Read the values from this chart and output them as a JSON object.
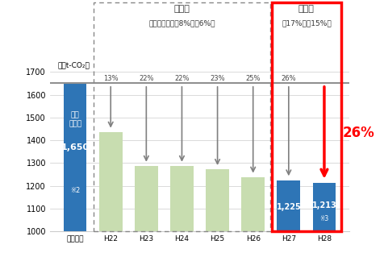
{
  "title_period1": "第一期",
  "subtitle_period1": "（削減義務率：8%又は6%）",
  "title_period2": "第二期",
  "subtitle_period2": "（17%又は15%）",
  "ylabel": "万t-CO₂)",
  "ylim": [
    1000,
    1700
  ],
  "yticks": [
    1000,
    1100,
    1200,
    1300,
    1400,
    1500,
    1600,
    1700
  ],
  "categories": [
    "基準年度",
    "H22",
    "H23",
    "H24",
    "H25",
    "H26",
    "H27",
    "H28"
  ],
  "values": [
    1650,
    1436,
    1287,
    1287,
    1272,
    1238,
    1225,
    1213
  ],
  "colors": [
    "#2E75B6",
    "#C8DDB0",
    "#C8DDB0",
    "#C8DDB0",
    "#C8DDB0",
    "#C8DDB0",
    "#2E75B6",
    "#2E75B6"
  ],
  "pct_labels": [
    "",
    "13%",
    "22%",
    "22%",
    "23%",
    "25%",
    "26%",
    ""
  ],
  "baseline": 1650,
  "arrow_color": "#808080",
  "red_arrow_color": "#FF0000",
  "red_pct_label": "26%",
  "baseline_line_color": "#909090",
  "background_color": "#FFFFFF",
  "bar_width": 0.65
}
